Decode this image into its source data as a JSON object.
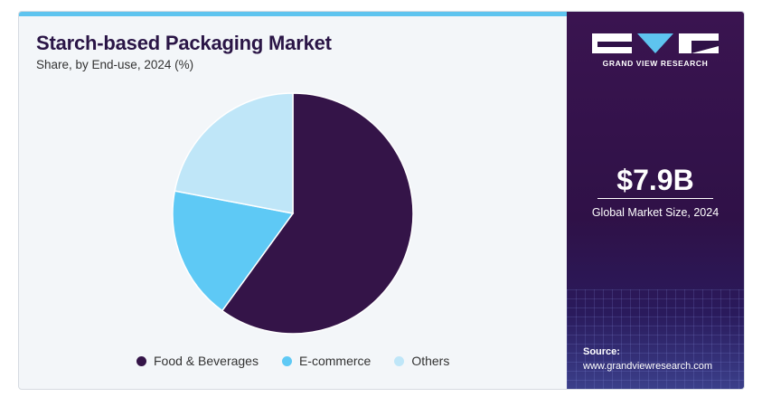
{
  "chart_data": {
    "type": "pie",
    "title": "Starch-based Packaging Market",
    "subtitle": "Share, by End-use, 2024 (%)",
    "categories": [
      "Food & Beverages",
      "E-commerce",
      "Others"
    ],
    "values": [
      60,
      18,
      22
    ],
    "colors": [
      "#341448",
      "#5ec9f5",
      "#bfe6f8"
    ],
    "legend_position": "bottom"
  },
  "brand": {
    "name": "GRAND VIEW RESEARCH",
    "logo_color": "#ffffff",
    "accent": "#5ec4ef"
  },
  "stat": {
    "value": "$7.9B",
    "label": "Global Market Size, 2024"
  },
  "source": {
    "label": "Source:",
    "url": "www.grandviewresearch.com"
  }
}
